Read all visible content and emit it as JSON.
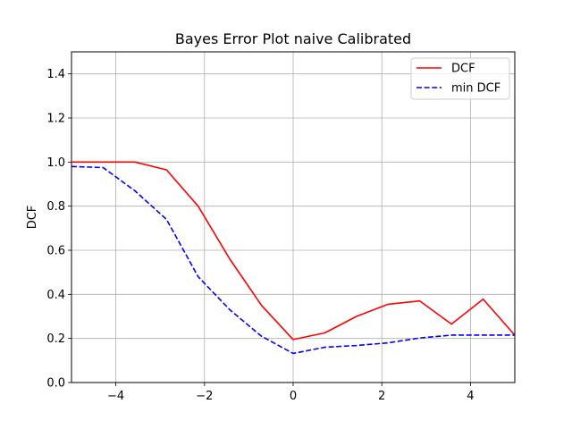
{
  "chart_data": {
    "type": "line",
    "title": "Bayes Error Plot naive Calibrated",
    "xlabel": "",
    "ylabel": "DCF",
    "xlim": [
      -5,
      5
    ],
    "ylim": [
      0,
      1.5
    ],
    "xticks": [
      -4,
      -2,
      0,
      2,
      4
    ],
    "xtick_labels": [
      "−4",
      "−2",
      "0",
      "2",
      "4"
    ],
    "yticks": [
      0.0,
      0.2,
      0.4,
      0.6,
      0.8,
      1.0,
      1.2,
      1.4
    ],
    "ytick_labels": [
      "0.0",
      "0.2",
      "0.4",
      "0.6",
      "0.8",
      "1.0",
      "1.2",
      "1.4"
    ],
    "grid": true,
    "legend_position": "top-right",
    "x": [
      -5.0,
      -4.286,
      -3.571,
      -2.857,
      -2.143,
      -1.429,
      -0.714,
      0.0,
      0.714,
      1.429,
      2.143,
      2.857,
      3.571,
      4.286,
      5.0
    ],
    "series": [
      {
        "name": "DCF",
        "color": "#ff0000",
        "style": "solid",
        "values": [
          1.0,
          1.0,
          1.0,
          0.965,
          0.8,
          0.56,
          0.35,
          0.195,
          0.225,
          0.3,
          0.355,
          0.37,
          0.265,
          0.378,
          0.215
        ]
      },
      {
        "name": "min DCF",
        "color": "#0000ff",
        "style": "dashed",
        "values": [
          0.98,
          0.975,
          0.87,
          0.74,
          0.48,
          0.33,
          0.21,
          0.132,
          0.16,
          0.168,
          0.18,
          0.202,
          0.215,
          0.215,
          0.215
        ]
      }
    ]
  }
}
